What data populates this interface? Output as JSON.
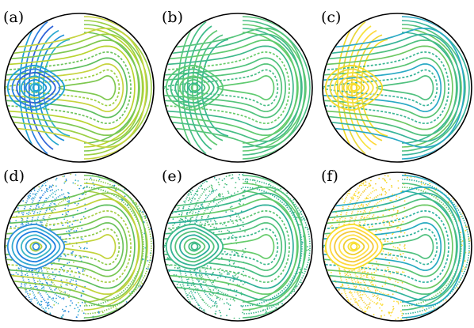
{
  "figure": {
    "panels": [
      {
        "label": "(a)",
        "style": "regular",
        "left_lobe_colors": [
          "#1e9fd6",
          "#2a7fe0",
          "#2d62d8",
          "#27a8cf",
          "#1e8fd9",
          "#2fb3c7"
        ],
        "right_lobe_colors": [
          "#c6d33d",
          "#9cd044",
          "#7ec84f",
          "#b8d42f",
          "#6cc35a",
          "#5fbf5f"
        ]
      },
      {
        "label": "(b)",
        "style": "regular",
        "left_lobe_colors": [
          "#58c878",
          "#45bf84",
          "#3dbb88",
          "#5fc972",
          "#4cc27e",
          "#37b78f"
        ],
        "right_lobe_colors": [
          "#55c47a",
          "#48be85",
          "#5fca70",
          "#3eb98a",
          "#66cc6a",
          "#50c27d"
        ]
      },
      {
        "label": "(c)",
        "style": "regular",
        "left_lobe_colors": [
          "#f3d928",
          "#e8d73a",
          "#f7e23b",
          "#ffd83a",
          "#eed432",
          "#f9de2c"
        ],
        "right_lobe_colors": [
          "#2aa9c5",
          "#38b59a",
          "#4fc07e",
          "#6dc863",
          "#3ab691",
          "#5ac474"
        ]
      },
      {
        "label": "(d)",
        "style": "chaotic",
        "left_lobe_colors": [
          "#2c8ed9",
          "#32a7d0",
          "#1e7fe0",
          "#3bb6c6",
          "#2e97d4",
          "#a8cf40"
        ],
        "right_lobe_colors": [
          "#6cc35a",
          "#8ecb4b",
          "#c2d33a",
          "#5fbf5f",
          "#a6ce45",
          "#79c753"
        ]
      },
      {
        "label": "(e)",
        "style": "chaotic",
        "left_lobe_colors": [
          "#3fb98a",
          "#34b394",
          "#54c27c",
          "#2dae9c",
          "#5cc675",
          "#45bd84"
        ],
        "right_lobe_colors": [
          "#52c27c",
          "#3db98b",
          "#66cb6b",
          "#2fb098",
          "#5ac574",
          "#46bd82"
        ]
      },
      {
        "label": "(f)",
        "style": "chaotic",
        "left_lobe_colors": [
          "#f7dc2a",
          "#ffd83a",
          "#f3c93b",
          "#ffe04a",
          "#eecf30",
          "#f9e23b"
        ],
        "right_lobe_colors": [
          "#26aac0",
          "#34b49d",
          "#4fc07e",
          "#6bc864",
          "#2fb3a0",
          "#5ac474"
        ]
      }
    ]
  }
}
